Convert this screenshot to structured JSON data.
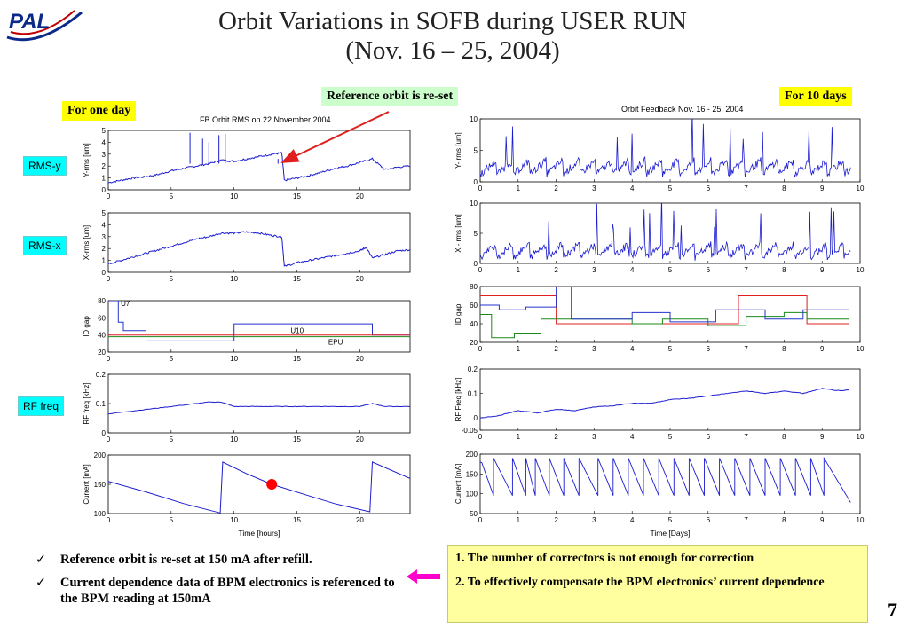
{
  "slide": {
    "title_line1": "Orbit Variations in SOFB during USER RUN",
    "title_line2": "(Nov. 16 – 25, 2004)",
    "logo_text": "PAL",
    "page_number": "7"
  },
  "callouts": {
    "one_day": "For one day",
    "reset": "Reference orbit is re-set",
    "ten_days": "For 10 days"
  },
  "side_labels": [
    "RMS-y",
    "RMS-x",
    "RF freq"
  ],
  "left_title": "FB Orbit  RMS   on 22 November 2004",
  "right_title": "Orbit Feedback      Nov. 16 - 25, 2004",
  "bullets": [
    "Reference orbit is re-set at 150 mA after refill.",
    "Current dependence data of BPM electronics is referenced to the BPM reading at 150mA"
  ],
  "notes": [
    "1. The number of correctors is not enough for correction",
    "2. To effectively compensate the BPM electronics’ current dependence"
  ],
  "colors": {
    "trace": "#1b1bd0",
    "gap_red": "#e02020",
    "gap_green": "#1a8a1a",
    "gap_blue": "#2233cc",
    "marker": "#ff0000",
    "arrow": "#e02020",
    "arrow_pink": "#ff00cc"
  },
  "chart_data": [
    {
      "type": "line",
      "title": "FB Orbit  RMS   on 22 November 2004",
      "ylabel": "Y-rms  [um]",
      "xlim": [
        0,
        24
      ],
      "ylim": [
        0,
        5
      ],
      "xticks": [
        0,
        5,
        10,
        15,
        20
      ],
      "yticks": [
        0,
        1,
        2,
        3,
        4,
        5
      ],
      "series": [
        {
          "x": [
            0,
            1,
            2,
            3,
            4,
            5,
            6,
            7,
            8,
            9,
            10,
            11,
            12,
            13,
            13.8,
            14,
            15,
            16,
            17,
            18,
            19,
            20,
            21,
            22,
            23,
            24
          ],
          "y": [
            0.6,
            0.8,
            1.0,
            1.1,
            1.3,
            1.6,
            1.8,
            2.0,
            2.2,
            2.5,
            2.4,
            2.6,
            2.8,
            3.0,
            3.1,
            0.8,
            1.0,
            1.2,
            1.5,
            1.8,
            2.0,
            2.3,
            2.6,
            1.7,
            1.9,
            2.0
          ]
        }
      ],
      "spikes": [
        {
          "x": 6.5,
          "y": 4.8
        },
        {
          "x": 7.5,
          "y": 4.3
        },
        {
          "x": 8.0,
          "y": 4.0
        },
        {
          "x": 8.8,
          "y": 4.6
        },
        {
          "x": 9.3,
          "y": 4.7
        },
        {
          "x": 13.5,
          "y": 2.6
        }
      ]
    },
    {
      "type": "line",
      "ylabel": "X-rms  [um]",
      "xlim": [
        0,
        24
      ],
      "ylim": [
        0,
        5
      ],
      "xticks": [
        0,
        5,
        10,
        15,
        20
      ],
      "yticks": [
        0,
        1,
        2,
        3,
        4,
        5
      ],
      "series": [
        {
          "x": [
            0,
            1,
            2,
            3,
            4,
            5,
            6,
            7,
            8,
            9,
            10,
            11,
            12,
            13,
            13.8,
            14,
            15,
            16,
            17,
            18,
            19,
            20,
            20.5,
            21,
            22,
            23,
            24
          ],
          "y": [
            0.7,
            1.0,
            1.3,
            1.6,
            1.9,
            2.2,
            2.5,
            2.8,
            3.0,
            3.3,
            3.3,
            3.4,
            3.3,
            3.1,
            3.0,
            0.5,
            0.8,
            1.0,
            1.2,
            1.4,
            1.6,
            1.8,
            2.1,
            1.2,
            1.5,
            1.8,
            1.9
          ]
        }
      ]
    },
    {
      "type": "line",
      "ylabel": "ID  gap",
      "xlim": [
        0,
        24
      ],
      "ylim": [
        20,
        80
      ],
      "xticks": [
        0,
        5,
        10,
        15,
        20
      ],
      "yticks": [
        20,
        40,
        60,
        80
      ],
      "annotations": [
        "U7",
        "U10",
        "EPU"
      ],
      "series": [
        {
          "name": "U7",
          "x": [
            0,
            0.8,
            0.8,
            1.2,
            1.2,
            3.0,
            3.0,
            10.0,
            10.0,
            21.0,
            21.0,
            24
          ],
          "y": [
            80,
            80,
            55,
            55,
            45,
            45,
            33,
            33,
            53,
            53,
            40,
            40
          ]
        },
        {
          "name": "U10",
          "x": [
            0,
            24
          ],
          "y": [
            40,
            40
          ]
        },
        {
          "name": "EPU",
          "x": [
            0,
            16,
            16,
            24
          ],
          "y": [
            38,
            38,
            38,
            38
          ]
        }
      ]
    },
    {
      "type": "line",
      "ylabel": "RF freq  [kHz]",
      "xlim": [
        0,
        24
      ],
      "ylim": [
        0,
        0.2
      ],
      "xticks": [
        0,
        5,
        10,
        15,
        20
      ],
      "yticks": [
        0,
        0.1,
        0.2
      ],
      "series": [
        {
          "x": [
            0,
            2,
            4,
            6,
            8,
            9,
            10,
            12,
            14,
            16,
            18,
            20,
            21,
            22,
            24
          ],
          "y": [
            0.065,
            0.075,
            0.085,
            0.095,
            0.105,
            0.105,
            0.09,
            0.09,
            0.09,
            0.09,
            0.09,
            0.09,
            0.1,
            0.09,
            0.09
          ]
        }
      ]
    },
    {
      "type": "line",
      "ylabel": "Current  [mA]",
      "xlabel": "Time  [hours]",
      "xlim": [
        0,
        24
      ],
      "ylim": [
        100,
        200
      ],
      "xticks": [
        0,
        5,
        10,
        15,
        20
      ],
      "yticks": [
        100,
        150,
        200
      ],
      "marker": {
        "x": 13,
        "y": 150
      },
      "series": [
        {
          "x": [
            0,
            3,
            6,
            8.9,
            8.9,
            9.1,
            11,
            13,
            16,
            18,
            20.8,
            20.8,
            21,
            24
          ],
          "y": [
            155,
            137,
            117,
            101,
            101,
            188,
            168,
            150,
            130,
            117,
            103,
            103,
            188,
            160
          ]
        }
      ]
    },
    {
      "type": "line",
      "title": "Orbit Feedback      Nov. 16 - 25, 2004",
      "ylabel": "Y- rms  [um]",
      "xlim": [
        0,
        10
      ],
      "ylim": [
        0,
        10
      ],
      "xticks": [
        0,
        1,
        2,
        3,
        4,
        5,
        6,
        7,
        8,
        9,
        10
      ],
      "yticks": [
        0,
        5,
        10
      ]
    },
    {
      "type": "line",
      "ylabel": "X - rms  [um]",
      "xlim": [
        0,
        10
      ],
      "ylim": [
        0,
        10
      ],
      "xticks": [
        0,
        1,
        2,
        3,
        4,
        5,
        6,
        7,
        8,
        9,
        10
      ],
      "yticks": [
        0,
        5,
        10
      ]
    },
    {
      "type": "line",
      "ylabel": "ID  gap",
      "xlim": [
        0,
        10
      ],
      "ylim": [
        20,
        80
      ],
      "xticks": [
        0,
        1,
        2,
        3,
        4,
        5,
        6,
        7,
        8,
        9,
        10
      ],
      "yticks": [
        20,
        40,
        60,
        80
      ],
      "series": [
        {
          "x": [
            0,
            2.0,
            2.0,
            6.8,
            6.8,
            8.6,
            8.6,
            9.7
          ],
          "y": [
            70,
            70,
            40,
            40,
            70,
            70,
            40,
            40
          ]
        },
        {
          "x": [
            0,
            0.3,
            0.3,
            0.9,
            0.9,
            1.6,
            1.6,
            2.0,
            2.0,
            4.0,
            4.0,
            4.8,
            4.8,
            6.0,
            6.0,
            7.0,
            7.0,
            8.0,
            8.0,
            8.6,
            8.6,
            9.7
          ],
          "y": [
            50,
            50,
            25,
            25,
            30,
            30,
            45,
            45,
            45,
            45,
            40,
            40,
            45,
            45,
            38,
            38,
            48,
            48,
            52,
            52,
            45,
            45
          ]
        },
        {
          "x": [
            0,
            0.5,
            0.5,
            1.2,
            1.2,
            2.0,
            2.0,
            2.4,
            2.4,
            4.0,
            4.0,
            5.0,
            5.0,
            6.2,
            6.2,
            7.5,
            7.5,
            8.5,
            8.5,
            9.7
          ],
          "y": [
            60,
            60,
            55,
            55,
            58,
            58,
            80,
            80,
            45,
            45,
            52,
            52,
            42,
            42,
            55,
            55,
            45,
            45,
            55,
            55
          ]
        }
      ]
    },
    {
      "type": "line",
      "ylabel": "RF Freq  [kHz]",
      "xlim": [
        0,
        10
      ],
      "ylim": [
        -0.05,
        0.2
      ],
      "xticks": [
        0,
        1,
        2,
        3,
        4,
        5,
        6,
        7,
        8,
        9,
        10
      ],
      "yticks": [
        -0.05,
        0,
        0.1,
        0.2
      ],
      "series": [
        {
          "x": [
            0,
            0.5,
            1.0,
            1.5,
            2.0,
            2.5,
            3.0,
            3.5,
            4.0,
            4.5,
            5.0,
            5.5,
            6.0,
            6.5,
            7.0,
            7.5,
            8.0,
            8.5,
            9.0,
            9.5,
            9.7
          ],
          "y": [
            0.0,
            0.01,
            0.03,
            0.02,
            0.035,
            0.03,
            0.045,
            0.05,
            0.06,
            0.06,
            0.075,
            0.08,
            0.09,
            0.1,
            0.11,
            0.1,
            0.11,
            0.1,
            0.12,
            0.11,
            0.115
          ]
        }
      ]
    },
    {
      "type": "line",
      "ylabel": "Current  [mA]",
      "xlabel": "Time [Days]",
      "xlim": [
        0,
        10
      ],
      "ylim": [
        50,
        200
      ],
      "xticks": [
        0,
        1,
        2,
        3,
        4,
        5,
        6,
        7,
        8,
        9,
        10
      ],
      "yticks": [
        50,
        100,
        150,
        200
      ],
      "refill_days": [
        0.35,
        0.85,
        1.2,
        1.45,
        1.82,
        2.2,
        2.6,
        3.1,
        3.5,
        3.9,
        4.3,
        4.7,
        5.1,
        5.5,
        5.9,
        6.3,
        6.7,
        7.1,
        7.5,
        7.9,
        8.3,
        8.7,
        9.05
      ]
    }
  ]
}
